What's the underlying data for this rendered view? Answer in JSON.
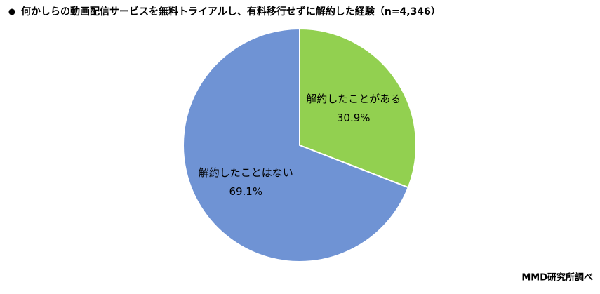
{
  "chart_data": {
    "type": "pie",
    "title": "何かしらの動画配信サービスを無料トライアルし、有料移行せずに解約した経験（n=4,346）",
    "categories": [
      "解約したことがある",
      "解約したことはない"
    ],
    "values": [
      30.9,
      69.1
    ],
    "value_labels": [
      "30.9%",
      "69.1%"
    ],
    "colors": [
      "#92d050",
      "#6f93d4"
    ],
    "source": "MMD研究所調べ"
  }
}
